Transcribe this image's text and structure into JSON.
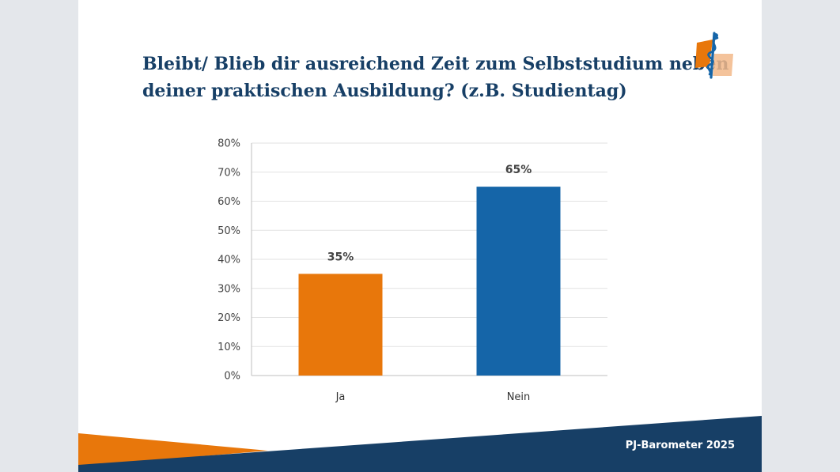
{
  "slide": {
    "title_lines": [
      "Bleibt/ Blieb dir ausreichend Zeit zum Selbststudium neben",
      "deiner praktischen Ausbildung? (z.B. Studientag)"
    ],
    "footer": "PJ-Barometer 2025",
    "logo_icon": "staff-of-asclepius-icon"
  },
  "colors": {
    "title": "#173f66",
    "navy": "#173f66",
    "orange": "#e8770b",
    "blue": "#1565a8"
  },
  "chart_data": {
    "type": "bar",
    "categories": [
      "Ja",
      "Nein"
    ],
    "values": [
      35,
      65
    ],
    "data_labels": [
      "35%",
      "65%"
    ],
    "bar_colors": [
      "#e8770b",
      "#1565a8"
    ],
    "ylim": [
      0,
      80
    ],
    "yticks": [
      0,
      10,
      20,
      30,
      40,
      50,
      60,
      70,
      80
    ],
    "ytick_labels": [
      "0%",
      "10%",
      "20%",
      "30%",
      "40%",
      "50%",
      "60%",
      "70%",
      "80%"
    ],
    "grid": true,
    "legend": false
  }
}
